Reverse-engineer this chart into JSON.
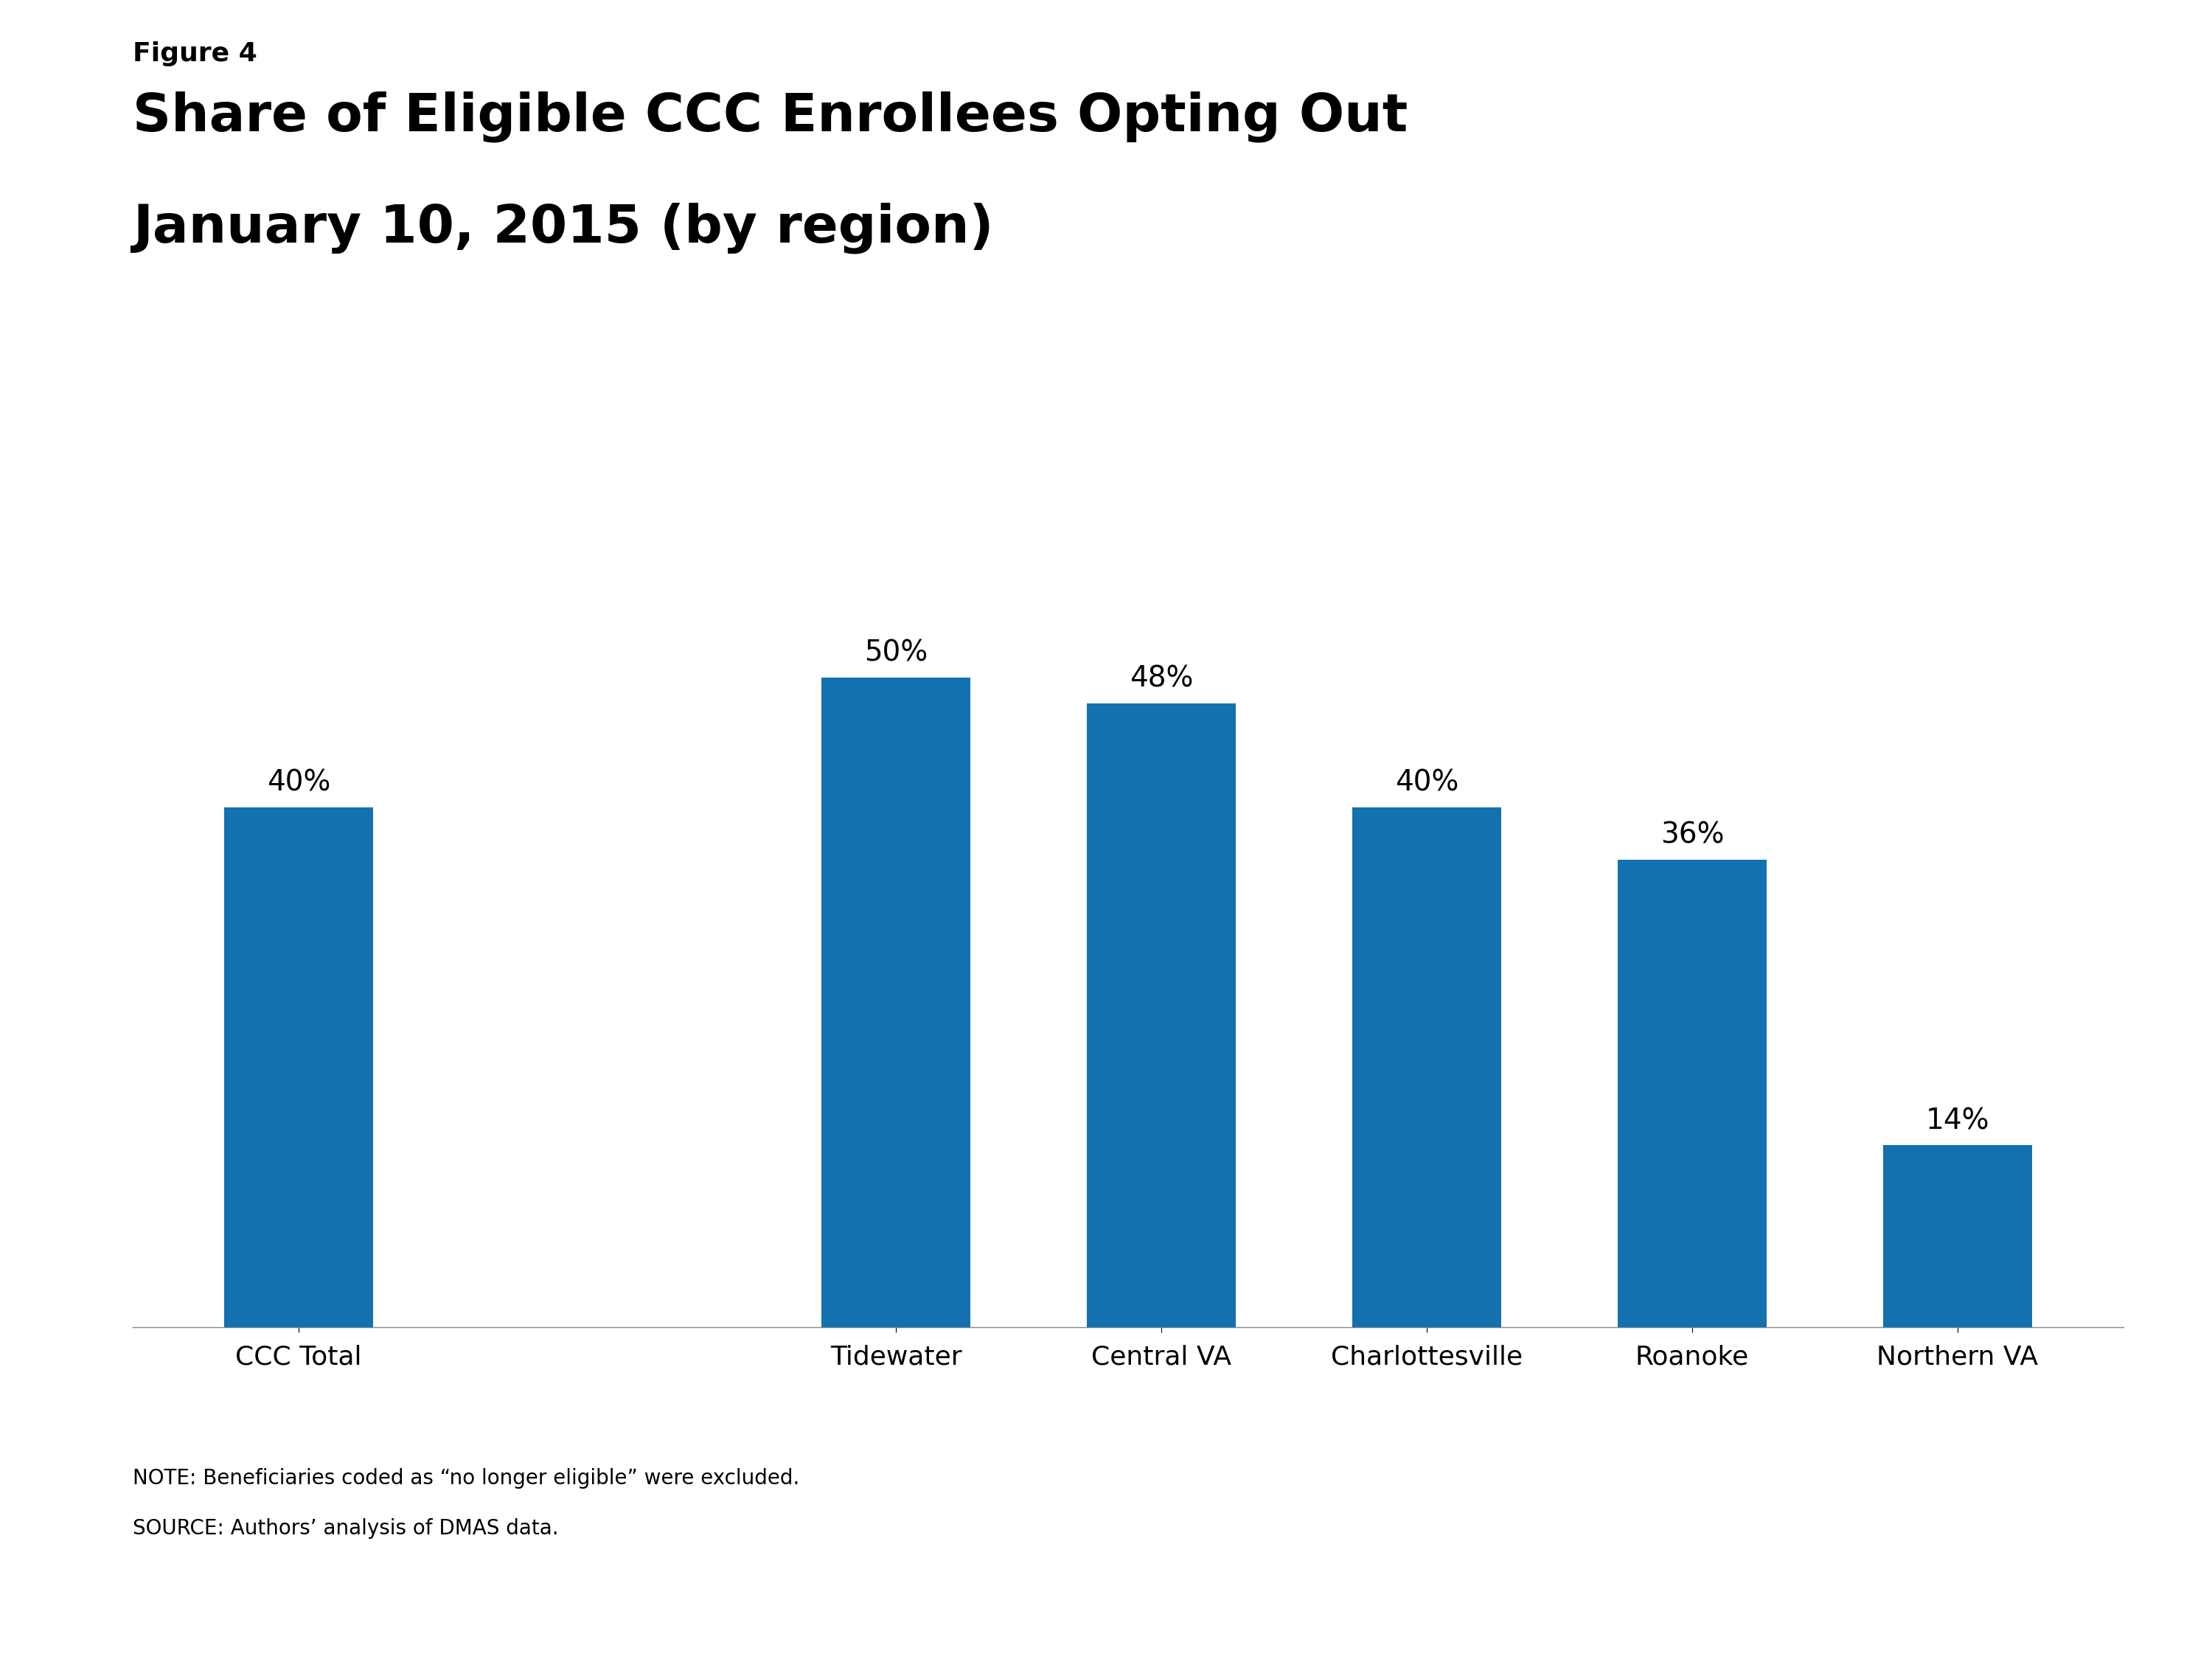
{
  "figure_label": "Figure 4",
  "title_line1": "Share of Eligible CCC Enrollees Opting Out",
  "title_line2": "January 10, 2015 (by region)",
  "categories": [
    "CCC Total",
    "Tidewater",
    "Central VA",
    "Charlottesville",
    "Roanoke",
    "Northern VA"
  ],
  "values": [
    40,
    50,
    48,
    40,
    36,
    14
  ],
  "bar_color": "#1471B0",
  "bar_labels": [
    "40%",
    "50%",
    "48%",
    "40%",
    "36%",
    "14%"
  ],
  "ylim": [
    0,
    60
  ],
  "background_color": "#ffffff",
  "note_line1": "NOTE: Beneficiaries coded as “no longer eligible” were excluded.",
  "note_line2": "SOURCE: Authors’ analysis of DMAS data.",
  "kff_bg_color": "#2E4A6C",
  "title_fontsize": 52,
  "figure_label_fontsize": 26,
  "bar_label_fontsize": 28,
  "xlabel_fontsize": 26,
  "note_fontsize": 20
}
